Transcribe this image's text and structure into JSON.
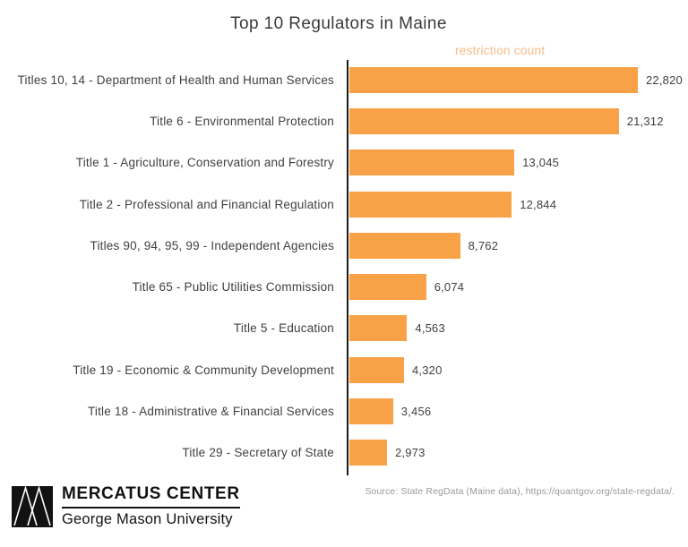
{
  "title": "Top 10 Regulators in Maine",
  "axis_label": "restriction count",
  "source": "Source: State RegData (Maine data), https://quantgov.org/state-regdata/.",
  "logo": {
    "primary": "MERCATUS CENTER",
    "secondary": "George Mason University",
    "mark": "mercatus-logo-mark"
  },
  "colors": {
    "bar": "#F9A147",
    "axis_label_text": "#F8BA85",
    "label_text": "#3F3F3F",
    "title_text": "#3A3A3A",
    "source_text": "#9A9A9A",
    "axis_line": "#1C1C1C",
    "logo": "#121212"
  },
  "chart_data": {
    "type": "bar",
    "orientation": "horizontal",
    "title": "Top 10 Regulators in Maine",
    "xlabel": "restriction count",
    "ylabel": "",
    "categories": [
      "Titles 10, 14 - Department of Health and Human Services",
      "Title 6 - Environmental Protection",
      "Title 1 - Agriculture, Conservation and Forestry",
      "Title 2 - Professional and Financial Regulation",
      "Titles 90, 94, 95, 99 - Independent Agencies",
      "Title 65 - Public Utilities Commission",
      "Title 5 - Education",
      "Title 19 - Economic & Community Development",
      "Title 18 - Administrative & Financial Services",
      "Title 29 - Secretary of State"
    ],
    "values": [
      22820,
      21312,
      13045,
      12844,
      8762,
      6074,
      4563,
      4320,
      3456,
      2973
    ],
    "value_labels": [
      "22,820",
      "21,312",
      "13,045",
      "12,844",
      "8,762",
      "6,074",
      "4,563",
      "4,320",
      "3,456",
      "2,973"
    ],
    "xlim": [
      0,
      22820
    ],
    "grid": false,
    "legend": false,
    "bar_color": "#F9A147"
  }
}
